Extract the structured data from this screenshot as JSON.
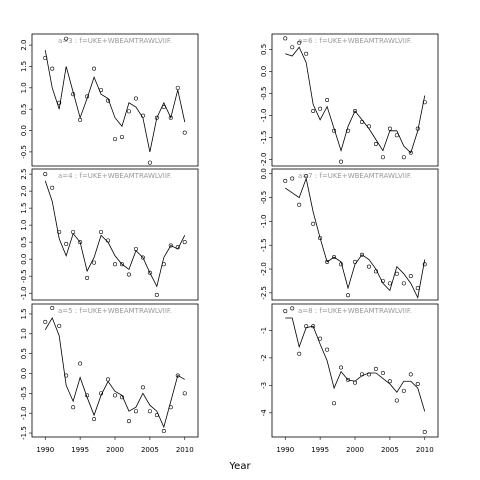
{
  "x_label": "Year",
  "chart_data": [
    {
      "type": "scatter",
      "title": "a=3 : f=UKE+WBEAMTRAWLVIIF.",
      "x": [
        1990,
        1991,
        1992,
        1993,
        1994,
        1995,
        1996,
        1997,
        1998,
        1999,
        2000,
        2001,
        2002,
        2003,
        2004,
        2005,
        2006,
        2007,
        2008,
        2009,
        2010
      ],
      "series": [
        {
          "kind": "points",
          "color": "#000000",
          "values": [
            1.7,
            1.45,
            0.65,
            2.15,
            0.85,
            0.25,
            0.8,
            1.45,
            0.95,
            0.7,
            -0.2,
            -0.15,
            0.45,
            0.75,
            0.35,
            -0.75,
            0.3,
            0.55,
            0.3,
            1.0,
            -0.05
          ]
        },
        {
          "kind": "line",
          "color": "#000000",
          "values": [
            1.88,
            1.0,
            0.5,
            1.5,
            0.9,
            0.3,
            0.75,
            1.25,
            0.85,
            0.75,
            0.3,
            0.1,
            0.65,
            0.55,
            0.3,
            -0.5,
            0.3,
            0.65,
            0.3,
            0.95,
            0.2
          ]
        }
      ],
      "xlim": [
        1988.1,
        2011.9
      ],
      "ylim": [
        -0.83,
        2.26
      ],
      "yticks": [
        -0.5,
        {
          "value": 0,
          "label": "0.0"
        },
        0.5,
        {
          "value": 1,
          "label": "1.0"
        },
        1.5,
        {
          "value": 2,
          "label": "2.0"
        }
      ]
    },
    {
      "type": "scatter",
      "title": "a=4 : f=UKE+WBEAMTRAWLVIIF.",
      "x": [
        1990,
        1991,
        1992,
        1993,
        1994,
        1995,
        1996,
        1997,
        1998,
        1999,
        2000,
        2001,
        2002,
        2003,
        2004,
        2005,
        2006,
        2007,
        2008,
        2009,
        2010
      ],
      "series": [
        {
          "kind": "points",
          "color": "#000000",
          "values": [
            2.5,
            2.1,
            0.8,
            0.45,
            0.8,
            0.5,
            -0.55,
            -0.1,
            0.8,
            0.55,
            -0.15,
            -0.15,
            -0.45,
            0.3,
            0.05,
            -0.4,
            -1.05,
            -0.15,
            0.4,
            0.35,
            0.5
          ]
        },
        {
          "kind": "line",
          "color": "#000000",
          "values": [
            2.3,
            1.7,
            0.6,
            0.1,
            0.75,
            0.5,
            -0.35,
            0.05,
            0.7,
            0.5,
            0.1,
            -0.15,
            -0.3,
            0.25,
            0.05,
            -0.4,
            -0.8,
            0.05,
            0.4,
            0.3,
            0.7
          ]
        }
      ],
      "xlim": [
        1988.1,
        2011.9
      ],
      "ylim": [
        -1.2,
        2.65
      ],
      "yticks": [
        {
          "value": -1,
          "label": "-1.0"
        },
        -0.5,
        {
          "value": 0,
          "label": "0.0"
        },
        0.5,
        {
          "value": 1,
          "label": "1.0"
        },
        1.5,
        {
          "value": 2,
          "label": "2.0"
        },
        2.5
      ]
    },
    {
      "type": "scatter",
      "title": "a=5 : f=UKE+WBEAMTRAWLVIIF.",
      "x": [
        1990,
        1991,
        1992,
        1993,
        1994,
        1995,
        1996,
        1997,
        1998,
        1999,
        2000,
        2001,
        2002,
        2003,
        2004,
        2005,
        2006,
        2007,
        2008,
        2009,
        2010
      ],
      "series": [
        {
          "kind": "points",
          "color": "#000000",
          "values": [
            1.3,
            1.65,
            1.2,
            -0.05,
            -0.85,
            0.25,
            -0.55,
            -1.15,
            -0.5,
            -0.15,
            -0.55,
            -0.6,
            -1.2,
            -0.95,
            -0.35,
            -0.95,
            -1.05,
            -1.45,
            -0.85,
            -0.05,
            -0.5
          ]
        },
        {
          "kind": "line",
          "color": "#000000",
          "values": [
            1.1,
            1.4,
            0.95,
            -0.3,
            -0.7,
            -0.1,
            -0.6,
            -1.05,
            -0.55,
            -0.2,
            -0.45,
            -0.55,
            -0.95,
            -0.85,
            -0.5,
            -0.8,
            -0.95,
            -1.35,
            -0.7,
            -0.05,
            -0.15
          ]
        }
      ],
      "xlim": [
        1988.1,
        2011.9
      ],
      "ylim": [
        -1.6,
        1.75
      ],
      "yticks": [
        -1.5,
        {
          "value": -1,
          "label": "-1.0"
        },
        -0.5,
        {
          "value": 0,
          "label": "0.0"
        },
        0.5,
        {
          "value": 1,
          "label": "1.0"
        },
        1.5
      ],
      "xticks": [
        1990,
        1995,
        2000,
        2005,
        2010
      ]
    },
    {
      "type": "scatter",
      "title": "a=6 : f=UKE+WBEAMTRAWLVIIF.",
      "x": [
        1990,
        1991,
        1992,
        1993,
        1994,
        1995,
        1996,
        1997,
        1998,
        1999,
        2000,
        2001,
        2002,
        2003,
        2004,
        2005,
        2006,
        2007,
        2008,
        2009,
        2010
      ],
      "series": [
        {
          "kind": "points",
          "color": "#000000",
          "values": [
            0.75,
            0.55,
            0.65,
            0.4,
            -0.9,
            -0.85,
            -0.65,
            -1.35,
            -2.05,
            -1.35,
            -0.9,
            -1.15,
            -1.25,
            -1.65,
            -1.95,
            -1.3,
            -1.45,
            -1.95,
            -1.85,
            -1.3,
            -0.7
          ]
        },
        {
          "kind": "line",
          "color": "#000000",
          "values": [
            0.4,
            0.35,
            0.55,
            0.2,
            -0.75,
            -1.1,
            -0.8,
            -1.3,
            -1.8,
            -1.25,
            -0.9,
            -1.1,
            -1.3,
            -1.55,
            -1.8,
            -1.35,
            -1.35,
            -1.7,
            -1.85,
            -1.35,
            -0.55
          ]
        }
      ],
      "xlim": [
        1988.1,
        2011.9
      ],
      "ylim": [
        -2.15,
        0.85
      ],
      "yticks": [
        {
          "value": -2,
          "label": "-2.0"
        },
        -1.5,
        {
          "value": -1,
          "label": "-1.0"
        },
        -0.5,
        {
          "value": 0,
          "label": "0.0"
        },
        0.5
      ]
    },
    {
      "type": "scatter",
      "title": "a=7 : f=UKE+WBEAMTRAWLVIIF.",
      "x": [
        1990,
        1991,
        1992,
        1993,
        1994,
        1995,
        1996,
        1997,
        1998,
        1999,
        2000,
        2001,
        2002,
        2003,
        2004,
        2005,
        2006,
        2007,
        2008,
        2009,
        2010
      ],
      "series": [
        {
          "kind": "points",
          "color": "#000000",
          "values": [
            -0.15,
            -0.1,
            -0.65,
            -0.05,
            -1.05,
            -1.35,
            -1.85,
            -1.75,
            -1.9,
            -2.55,
            -1.85,
            -1.7,
            -1.95,
            -2.05,
            -2.25,
            -2.3,
            -2.1,
            -2.3,
            -2.15,
            -2.4,
            -1.9
          ]
        },
        {
          "kind": "line",
          "color": "#000000",
          "values": [
            -0.3,
            -0.4,
            -0.5,
            -0.1,
            -0.8,
            -1.35,
            -1.85,
            -1.75,
            -1.85,
            -2.4,
            -1.9,
            -1.7,
            -1.8,
            -2.0,
            -2.3,
            -2.45,
            -1.95,
            -2.1,
            -2.3,
            -2.6,
            -1.8
          ]
        }
      ],
      "xlim": [
        1988.1,
        2011.9
      ],
      "ylim": [
        -2.65,
        0.1
      ],
      "yticks": [
        -2.5,
        {
          "value": -2,
          "label": "-2.0"
        },
        -1.5,
        {
          "value": -1,
          "label": "-1.0"
        },
        -0.5,
        {
          "value": 0,
          "label": "0.0"
        }
      ]
    },
    {
      "type": "scatter",
      "title": "a=8 : f=UKE+WBEAMTRAWLVIIF.",
      "x": [
        1990,
        1991,
        1992,
        1993,
        1994,
        1995,
        1996,
        1997,
        1998,
        1999,
        2000,
        2001,
        2002,
        2003,
        2004,
        2005,
        2006,
        2007,
        2008,
        2009,
        2010
      ],
      "series": [
        {
          "kind": "points",
          "color": "#000000",
          "values": [
            -0.3,
            -0.2,
            -1.85,
            -0.85,
            -0.85,
            -1.3,
            -1.7,
            -3.65,
            -2.35,
            -2.8,
            -2.9,
            -2.6,
            -2.6,
            -2.4,
            -2.55,
            -2.85,
            -3.55,
            -3.2,
            -2.6,
            -2.95,
            -4.7
          ]
        },
        {
          "kind": "line",
          "color": "#000000",
          "values": [
            -0.55,
            -0.55,
            -1.6,
            -0.9,
            -0.85,
            -1.5,
            -2.1,
            -3.1,
            -2.5,
            -2.8,
            -2.85,
            -2.65,
            -2.55,
            -2.55,
            -2.75,
            -2.95,
            -3.25,
            -2.85,
            -2.85,
            -3.1,
            -3.95
          ]
        }
      ],
      "xlim": [
        1988.1,
        2011.9
      ],
      "ylim": [
        -4.88,
        -0.04
      ],
      "yticks": [
        -4,
        -3,
        -2,
        -1
      ],
      "xticks": [
        1990,
        1995,
        2000,
        2005,
        2010
      ]
    }
  ]
}
